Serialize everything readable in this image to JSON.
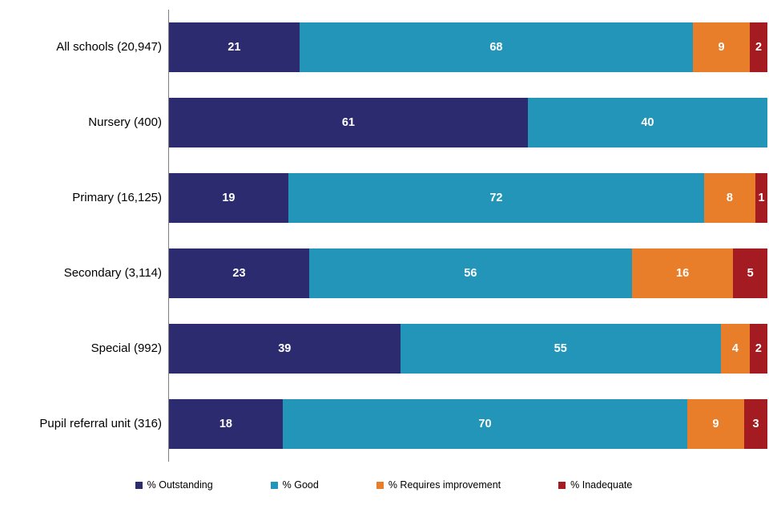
{
  "chart_data": {
    "type": "bar",
    "orientation": "horizontal",
    "stacked": true,
    "title": "",
    "xlabel": "",
    "ylabel": "",
    "xlim": [
      0,
      100
    ],
    "grid": false,
    "legend_position": "bottom",
    "value_labels": "inside-white-bold",
    "categories": [
      "All schools (20,947)",
      "Nursery (400)",
      "Primary (16,125)",
      "Secondary (3,114)",
      "Special (992)",
      "Pupil referral unit (316)"
    ],
    "series": [
      {
        "name": "% Outstanding",
        "color": "#2d2b70",
        "values": [
          21,
          61,
          19,
          23,
          39,
          18
        ]
      },
      {
        "name": "% Good",
        "color": "#2295b8",
        "values": [
          68,
          40,
          72,
          56,
          55,
          70
        ]
      },
      {
        "name": "% Requires improvement",
        "color": "#e87d2a",
        "values": [
          9,
          0,
          8,
          16,
          4,
          9
        ]
      },
      {
        "name": "% Inadequate",
        "color": "#a41c21",
        "values": [
          2,
          0,
          1,
          5,
          2,
          3
        ]
      }
    ]
  },
  "colors": {
    "axis_line": "#7f7f7f",
    "background": "#ffffff",
    "value_text": "#ffffff",
    "label_text": "#000000"
  }
}
